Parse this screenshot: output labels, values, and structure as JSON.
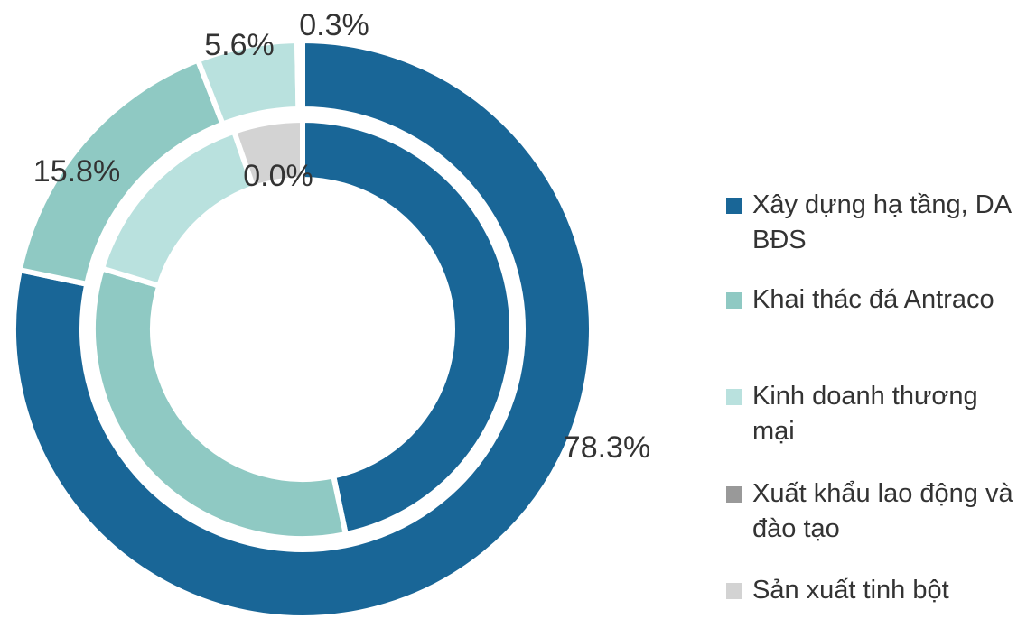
{
  "chart_data": {
    "type": "donut",
    "categories": [
      "Xây dựng hạ tầng, DA BĐS",
      "Khai thác đá Antraco",
      "Kinh doanh thương mại",
      "Xuất khẩu lao động và đào tạo",
      "Sản xuất tinh bột"
    ],
    "colors": [
      "#196697",
      "#8fc9c3",
      "#b9e1de",
      "#999999",
      "#d3d3d3"
    ],
    "series": [
      {
        "values": [
          78.3,
          15.8,
          5.6,
          0.3,
          0.0
        ],
        "value_labels": [
          "78.3%",
          "15.8%",
          "5.6%",
          "0.3%",
          "0.0%"
        ]
      },
      {
        "values": [
          46.7,
          33.0,
          15.0,
          0.0,
          5.3
        ]
      }
    ],
    "legend": "right"
  }
}
